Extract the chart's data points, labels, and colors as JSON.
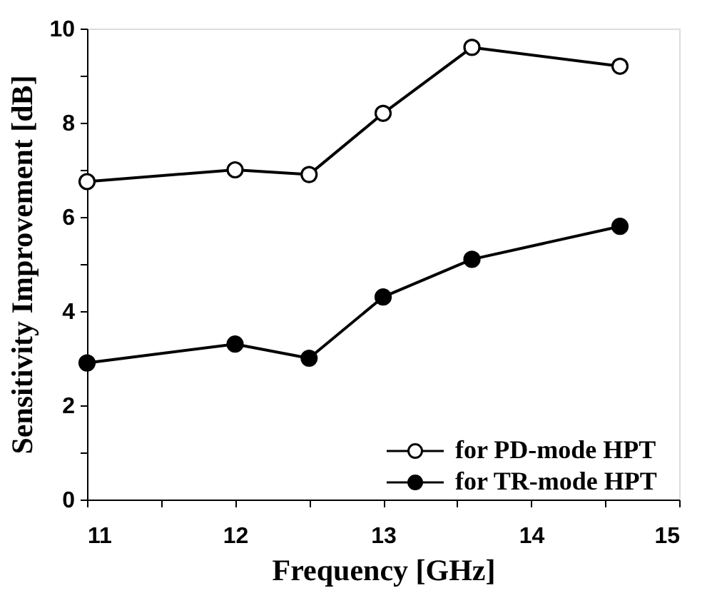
{
  "chart_data": {
    "type": "line",
    "xlabel": "Frequency [GHz]",
    "ylabel": "Sensitivity Improvement [dB]",
    "x": [
      11,
      12,
      12.5,
      13,
      13.6,
      14.6
    ],
    "series": [
      {
        "name": "for PD-mode HPT",
        "color": "#000000",
        "marker": "open circle",
        "values": [
          6.75,
          7.0,
          6.9,
          8.2,
          9.6,
          9.2
        ]
      },
      {
        "name": "for TR-mode HPT",
        "color": "#000000",
        "marker": "circle",
        "values": [
          2.9,
          3.3,
          3.0,
          4.3,
          5.1,
          5.8
        ]
      }
    ],
    "xlim": [
      11,
      15
    ],
    "xticks": [
      11,
      {
        "value": 11.5,
        "label": null
      },
      12,
      {
        "value": 12.5,
        "label": null
      },
      13,
      {
        "value": 13.5,
        "label": null
      },
      14,
      {
        "value": 14.5,
        "label": null
      },
      15
    ],
    "ylim": [
      0,
      10
    ],
    "yticks": [
      0,
      {
        "value": 1,
        "label": null
      },
      2,
      {
        "value": 3,
        "label": null
      },
      4,
      {
        "value": 5,
        "label": null
      },
      6,
      {
        "value": 7,
        "label": null
      },
      8,
      {
        "value": 9,
        "label": null
      },
      10
    ],
    "grid": false,
    "legend": "bottom right",
    "marker": "circle",
    "line_style": "solid"
  }
}
